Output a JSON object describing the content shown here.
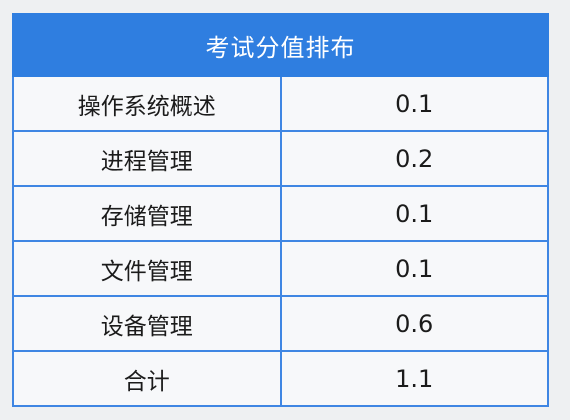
{
  "table": {
    "title": "考试分值排布",
    "rows": [
      {
        "name": "操作系统概述",
        "value": "0.1"
      },
      {
        "name": "进程管理",
        "value": "0.2"
      },
      {
        "name": "存储管理",
        "value": "0.1"
      },
      {
        "name": "文件管理",
        "value": "0.1"
      },
      {
        "name": "设备管理",
        "value": "0.6"
      },
      {
        "name": "合计",
        "value": "1.1"
      }
    ]
  }
}
